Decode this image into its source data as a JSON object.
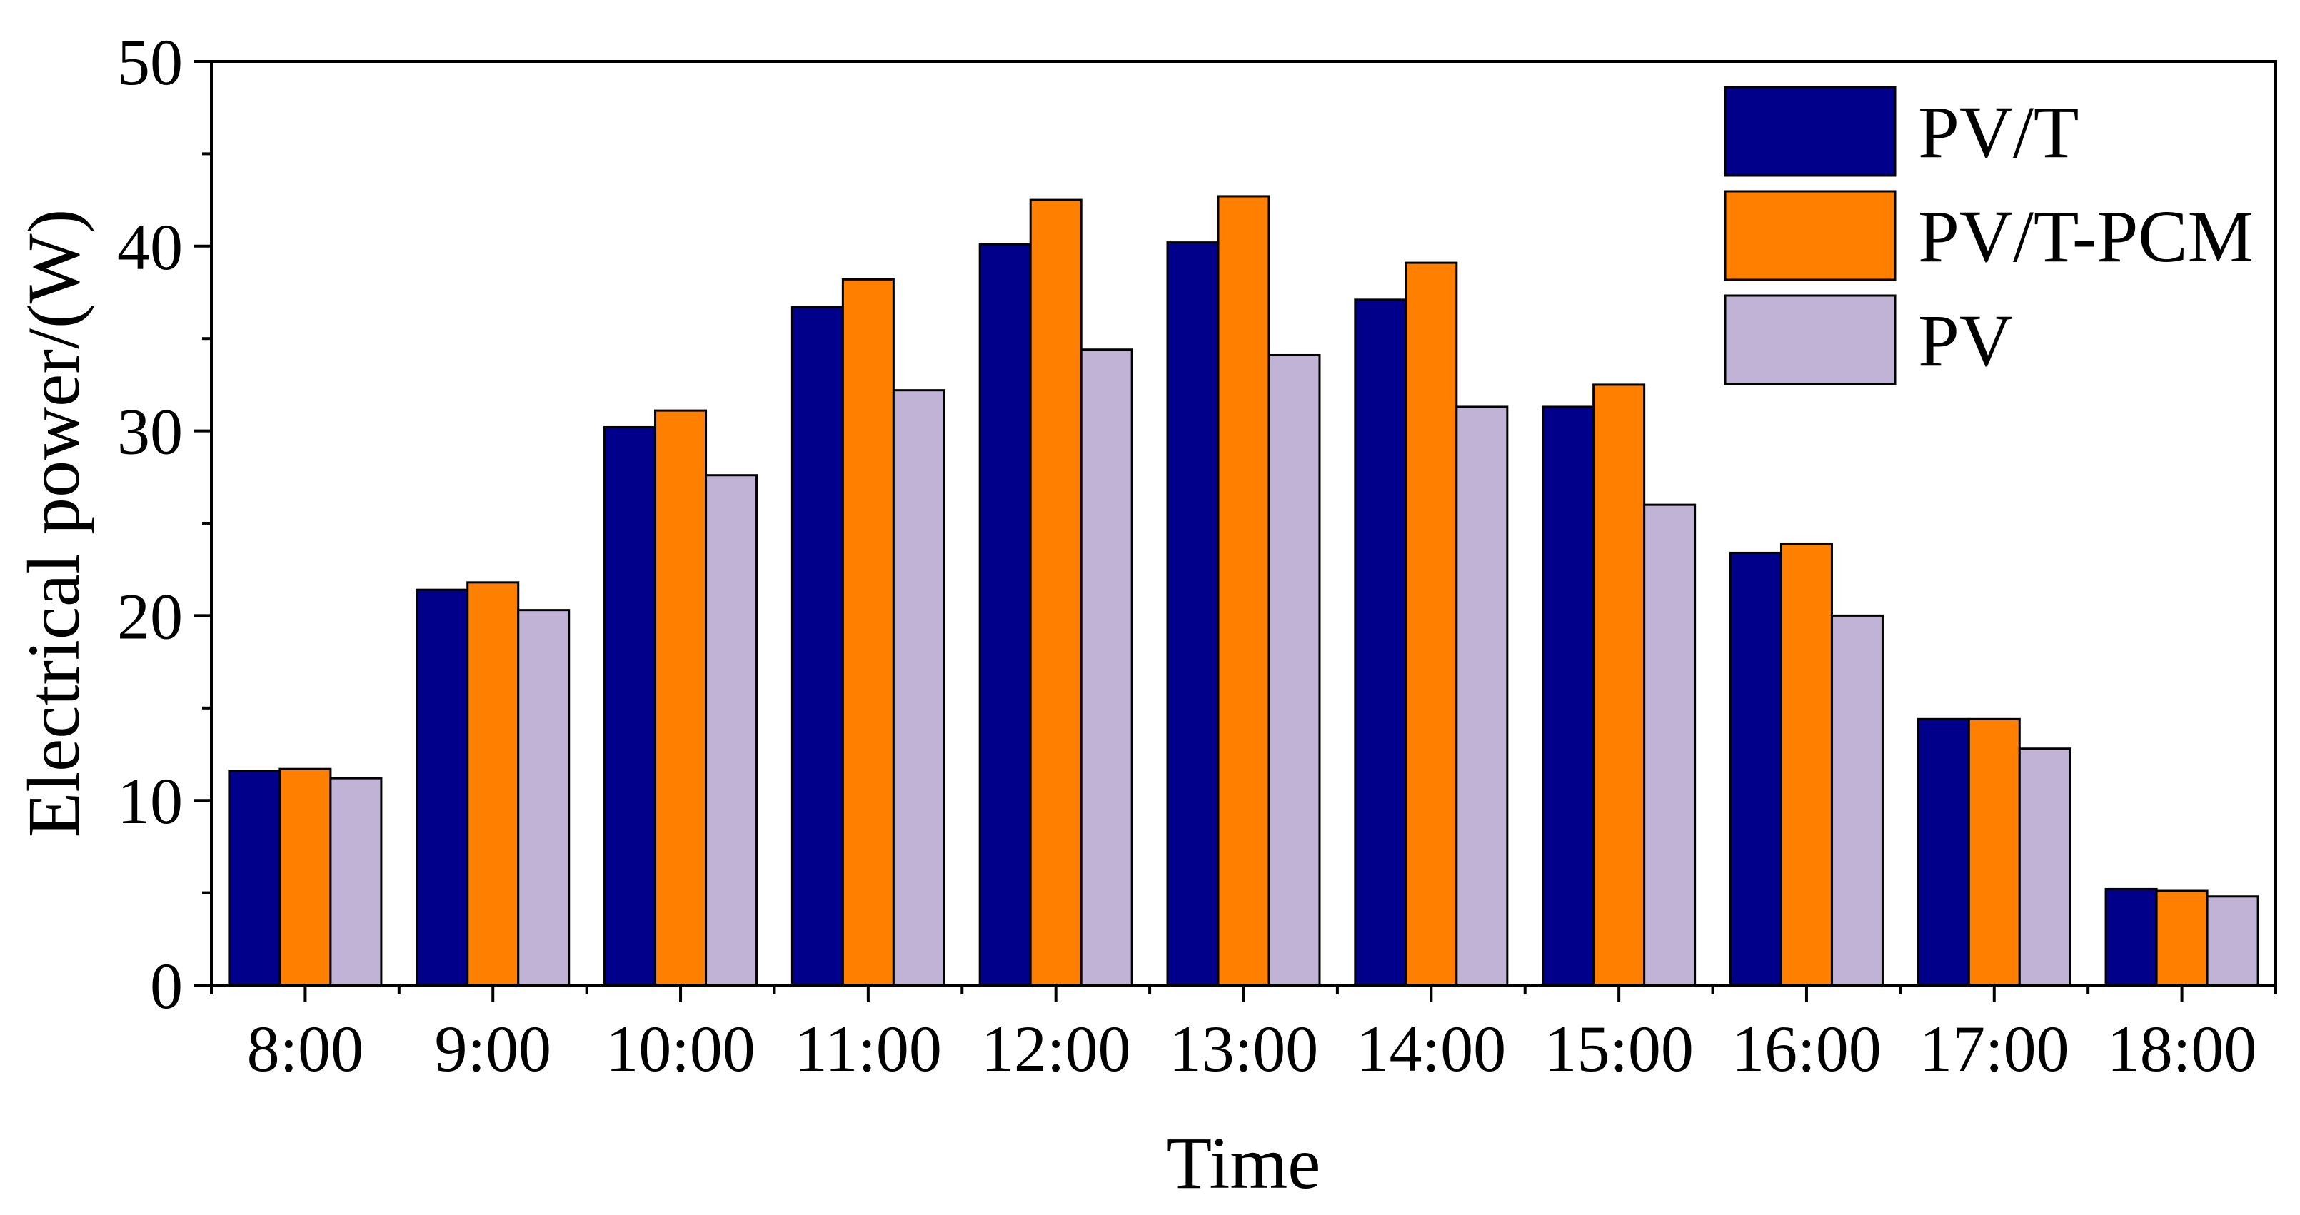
{
  "chart_data": {
    "type": "bar",
    "title": "",
    "xlabel": "Time",
    "ylabel": "Electrical power/(W)",
    "categories": [
      "8:00",
      "9:00",
      "10:00",
      "11:00",
      "12:00",
      "13:00",
      "14:00",
      "15:00",
      "16:00",
      "17:00",
      "18:00"
    ],
    "ylim": [
      0,
      50
    ],
    "yticks": [
      0,
      10,
      20,
      30,
      40,
      50
    ],
    "ytick_labels": [
      "0",
      "10",
      "20",
      "30",
      "40",
      "50"
    ],
    "grid": false,
    "legend_position": "top-right",
    "series": [
      {
        "name": "PV/T",
        "color": "#00008B",
        "values": [
          11.6,
          21.4,
          30.2,
          36.7,
          40.1,
          40.2,
          37.1,
          31.3,
          23.4,
          14.4,
          5.2
        ]
      },
      {
        "name": "PV/T-PCM",
        "color": "#FF7F00",
        "values": [
          11.7,
          21.8,
          31.1,
          38.2,
          42.5,
          42.7,
          39.1,
          32.5,
          23.9,
          14.4,
          5.1
        ]
      },
      {
        "name": "PV",
        "color": "#C0B3D6",
        "values": [
          11.2,
          20.3,
          27.6,
          32.2,
          34.4,
          34.1,
          31.3,
          26.0,
          20.0,
          12.8,
          4.8
        ]
      }
    ]
  }
}
